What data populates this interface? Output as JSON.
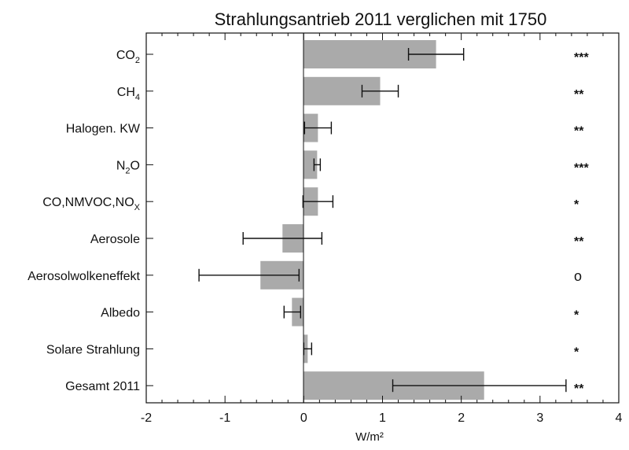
{
  "chart_data": {
    "type": "bar",
    "orientation": "horizontal",
    "title": "Strahlungsantrieb 2011 verglichen mit 1750",
    "xlabel": "W/m²",
    "xlim": [
      -2,
      4
    ],
    "xticks": [
      "-2",
      "-1",
      "0",
      "1",
      "2",
      "3",
      "4"
    ],
    "grid": false,
    "categories": [
      {
        "label": "CO",
        "sub": "2",
        "tail": ""
      },
      {
        "label": "CH",
        "sub": "4",
        "tail": ""
      },
      {
        "label": "Halogen. KW",
        "sub": "",
        "tail": ""
      },
      {
        "label": "N",
        "sub": "2",
        "tail": "O"
      },
      {
        "label": "CO,NMVOC,NO",
        "sub": "X",
        "tail": ""
      },
      {
        "label": "Aerosole",
        "sub": "",
        "tail": ""
      },
      {
        "label": "Aerosolwolkeneffekt",
        "sub": "",
        "tail": ""
      },
      {
        "label": "Albedo",
        "sub": "",
        "tail": ""
      },
      {
        "label": "Solare Strahlung",
        "sub": "",
        "tail": ""
      },
      {
        "label": "Gesamt 2011",
        "sub": "",
        "tail": ""
      }
    ],
    "values": [
      1.68,
      0.97,
      0.18,
      0.17,
      0.18,
      -0.27,
      -0.55,
      -0.15,
      0.05,
      2.29
    ],
    "error_low": [
      1.33,
      0.74,
      0.01,
      0.13,
      -0.01,
      -0.77,
      -1.33,
      -0.25,
      0.0,
      1.13
    ],
    "error_high": [
      2.03,
      1.2,
      0.35,
      0.21,
      0.37,
      0.23,
      -0.06,
      -0.04,
      0.1,
      3.33
    ],
    "confidence": [
      "***",
      "**",
      "**",
      "***",
      "*",
      "**",
      "o",
      "*",
      "*",
      "**"
    ]
  },
  "colors": {
    "bar": "#aaaaaa",
    "axis": "#111111"
  }
}
